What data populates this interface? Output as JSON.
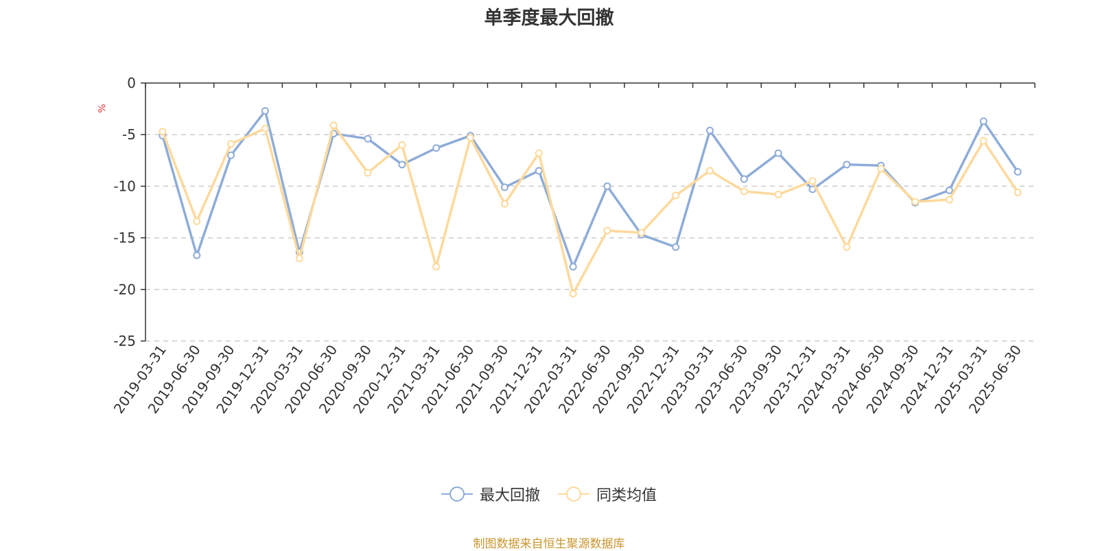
{
  "chart_data": {
    "type": "line",
    "title": "单季度最大回撤",
    "ylabel": "%",
    "xlabel": "",
    "ylim": [
      -25,
      0
    ],
    "yticks": [
      0,
      -5,
      -10,
      -15,
      -20,
      -25
    ],
    "grid": true,
    "legend_position": "bottom",
    "categories": [
      "2019-03-31",
      "2019-06-30",
      "2019-09-30",
      "2019-12-31",
      "2020-03-31",
      "2020-06-30",
      "2020-09-30",
      "2020-12-31",
      "2021-03-31",
      "2021-06-30",
      "2021-09-30",
      "2021-12-31",
      "2022-03-31",
      "2022-06-30",
      "2022-09-30",
      "2022-12-31",
      "2023-03-31",
      "2023-06-30",
      "2023-09-30",
      "2023-12-31",
      "2024-03-31",
      "2024-06-30",
      "2024-09-30",
      "2024-12-31",
      "2025-03-31",
      "2025-06-30"
    ],
    "series": [
      {
        "name": "最大回撤",
        "color": "#8eacd8",
        "values": [
          -5.1,
          -16.7,
          -7.0,
          -2.7,
          -16.4,
          -4.9,
          -5.4,
          -7.9,
          -6.3,
          -5.1,
          -10.1,
          -8.5,
          -17.8,
          -10.0,
          -14.7,
          -15.9,
          -4.6,
          -9.3,
          -6.8,
          -10.3,
          -7.9,
          -8.0,
          -11.6,
          -10.4,
          -3.7,
          -8.6
        ]
      },
      {
        "name": "同类均值",
        "color": "#fdd99c",
        "values": [
          -4.7,
          -13.4,
          -5.9,
          -4.4,
          -17.0,
          -4.1,
          -8.7,
          -6.0,
          -17.8,
          -5.3,
          -11.7,
          -6.8,
          -20.4,
          -14.3,
          -14.5,
          -10.9,
          -8.5,
          -10.5,
          -10.8,
          -9.5,
          -15.9,
          -8.3,
          -11.5,
          -11.3,
          -5.6,
          -10.6
        ]
      }
    ]
  },
  "legend": {
    "items": [
      {
        "label": "最大回撤",
        "color": "#8eacd8"
      },
      {
        "label": "同类均值",
        "color": "#fdd99c"
      }
    ]
  },
  "footer": {
    "source": "制图数据来自恒生聚源数据库"
  }
}
